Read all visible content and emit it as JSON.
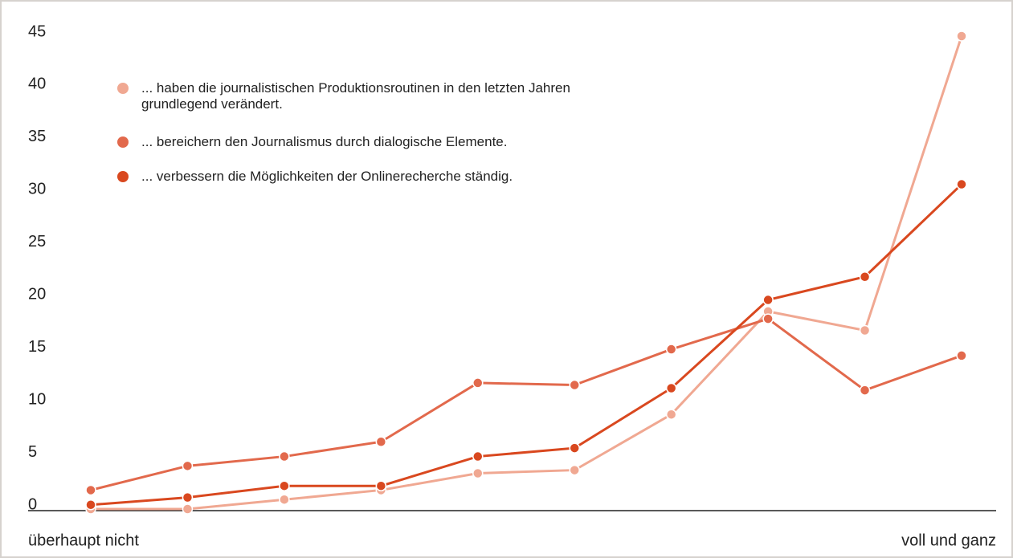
{
  "chart_data": {
    "type": "line",
    "categories": [
      "überhaupt nicht",
      null,
      null,
      null,
      null,
      null,
      null,
      null,
      null,
      "voll und ganz"
    ],
    "series": [
      {
        "name": "... haben die journalistischen Produktionsroutinen in den letzten Jahren grundlegend verändert.",
        "color": "#f0a892",
        "values": [
          0,
          0,
          0.9,
          1.8,
          3.4,
          3.7,
          9.0,
          18.8,
          17.0,
          45
        ]
      },
      {
        "name": "... bereichern den Journalismus durch dialogische Elemente.",
        "color": "#e2694c",
        "values": [
          1.8,
          4.1,
          5.0,
          6.4,
          12.0,
          11.8,
          15.2,
          18.1,
          11.3,
          14.6
        ]
      },
      {
        "name": "... verbessern die Möglichkeiten der Onlinerecherche ständig.",
        "color": "#d9481f",
        "values": [
          0.4,
          1.1,
          2.2,
          2.2,
          5.0,
          5.8,
          11.5,
          19.9,
          22.1,
          30.9
        ]
      }
    ],
    "ylim": [
      0,
      45
    ],
    "yticks": [
      0,
      5,
      10,
      15,
      20,
      25,
      30,
      35,
      40,
      45
    ],
    "grid": false
  }
}
